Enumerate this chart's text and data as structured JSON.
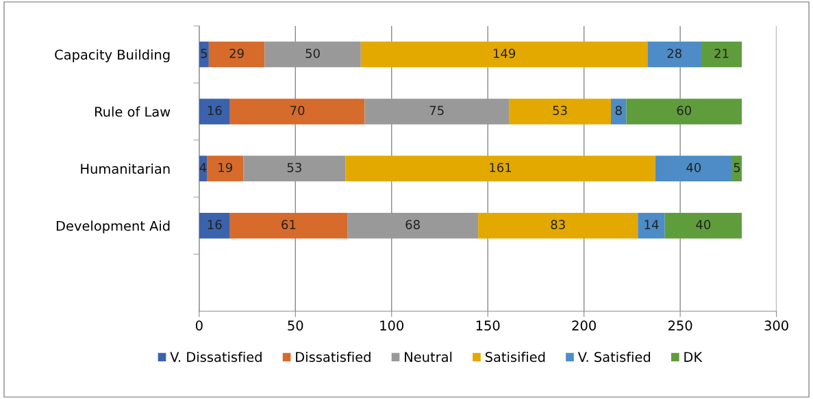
{
  "chart_data": {
    "type": "bar",
    "orientation": "horizontal",
    "stacked": true,
    "data_labels": true,
    "categories": [
      "Capacity Building",
      "Rule of Law",
      "Humanitarian",
      "Development Aid"
    ],
    "series": [
      {
        "name": "V. Dissatisfied",
        "color": "#3a62ad",
        "values": [
          5,
          16,
          4,
          16
        ]
      },
      {
        "name": "Dissatisfied",
        "color": "#d66b2c",
        "values": [
          29,
          70,
          19,
          61
        ]
      },
      {
        "name": "Neutral",
        "color": "#999999",
        "values": [
          50,
          75,
          53,
          68
        ]
      },
      {
        "name": "Satisified",
        "color": "#e3a900",
        "values": [
          149,
          53,
          161,
          83
        ]
      },
      {
        "name": "V. Satisfied",
        "color": "#4d8cc6",
        "values": [
          28,
          8,
          40,
          14
        ]
      },
      {
        "name": "DK",
        "color": "#5f9c3c",
        "values": [
          21,
          60,
          5,
          40
        ]
      }
    ],
    "xlim": [
      0,
      300
    ],
    "xticks": [
      0,
      50,
      100,
      150,
      200,
      250,
      300
    ],
    "grid": "x",
    "legend": "bottom"
  }
}
